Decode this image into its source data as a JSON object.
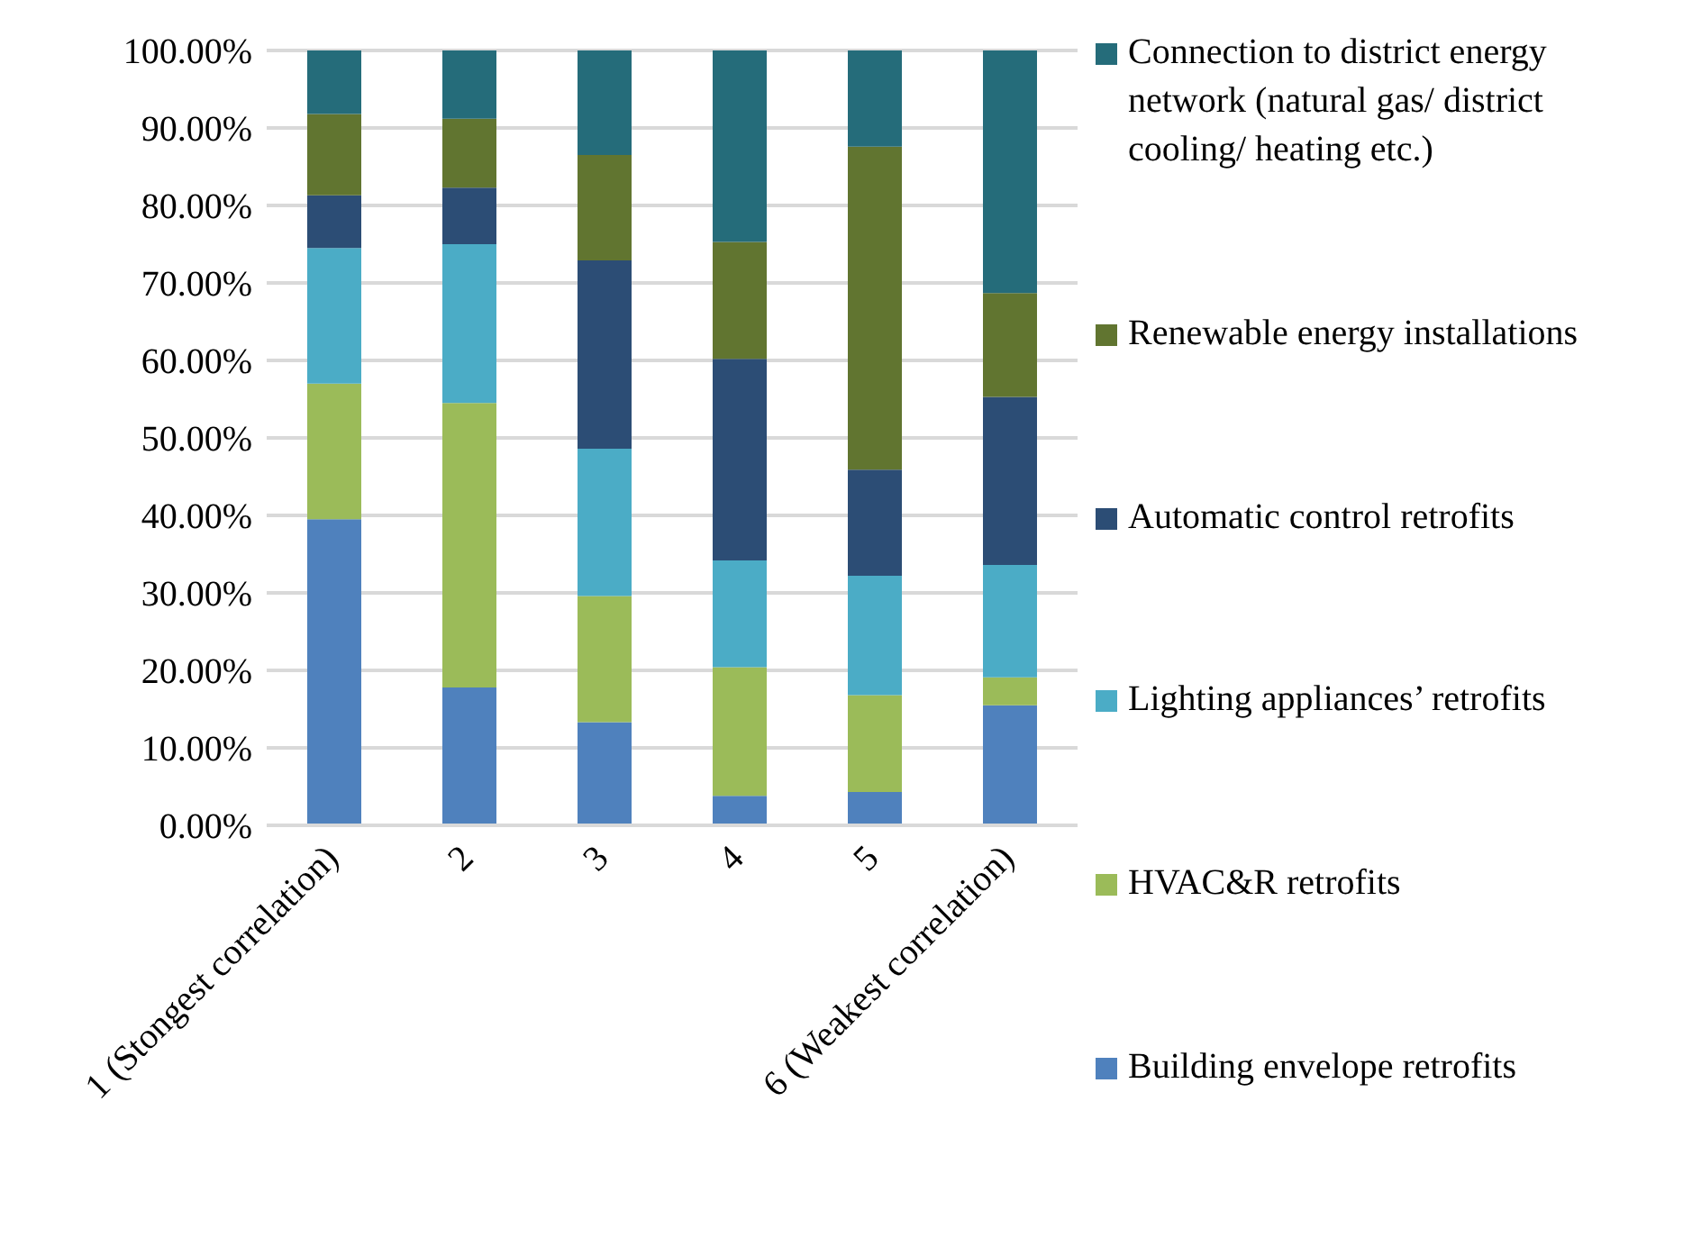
{
  "chart_data": {
    "type": "bar",
    "stacked": true,
    "categories": [
      "1 (Stongest correlation)",
      "2",
      "3",
      "4",
      "5",
      "6 (Weakest correlation)"
    ],
    "series": [
      {
        "name": "Building envelope retrofits",
        "color": "#4f81bd",
        "values": [
          39.5,
          17.8,
          13.3,
          3.8,
          4.3,
          15.5
        ]
      },
      {
        "name": "HVAC&R retrofits",
        "color": "#9bbb59",
        "values": [
          17.5,
          36.7,
          16.3,
          16.6,
          12.5,
          3.6
        ]
      },
      {
        "name": "Lighting appliances’ retrofits",
        "color": "#4bacc6",
        "values": [
          17.5,
          20.5,
          19.0,
          13.8,
          15.4,
          14.5
        ]
      },
      {
        "name": "Automatic control retrofits",
        "color": "#2c4d75",
        "values": [
          6.8,
          7.3,
          24.3,
          26.0,
          13.7,
          21.7
        ]
      },
      {
        "name": "Renewable energy installations",
        "color": "#617530",
        "values": [
          10.5,
          8.9,
          13.6,
          15.1,
          41.7,
          13.4
        ]
      },
      {
        "name": "Connection to district energy network (natural gas/ district cooling/ heating etc.)",
        "color": "#256c7a",
        "values": [
          8.2,
          8.8,
          13.5,
          24.7,
          12.4,
          31.3
        ]
      }
    ],
    "ylim": [
      0,
      100
    ],
    "yticks": [
      {
        "value": 0,
        "label": "0.00%"
      },
      {
        "value": 10,
        "label": "10.00%"
      },
      {
        "value": 20,
        "label": "20.00%"
      },
      {
        "value": 30,
        "label": "30.00%"
      },
      {
        "value": 40,
        "label": "40.00%"
      },
      {
        "value": 50,
        "label": "50.00%"
      },
      {
        "value": 60,
        "label": "60.00%"
      },
      {
        "value": 70,
        "label": "70.00%"
      },
      {
        "value": 80,
        "label": "80.00%"
      },
      {
        "value": 90,
        "label": "90.00%"
      },
      {
        "value": 100,
        "label": "100.00%"
      }
    ],
    "grid": "y",
    "legend": "right"
  }
}
